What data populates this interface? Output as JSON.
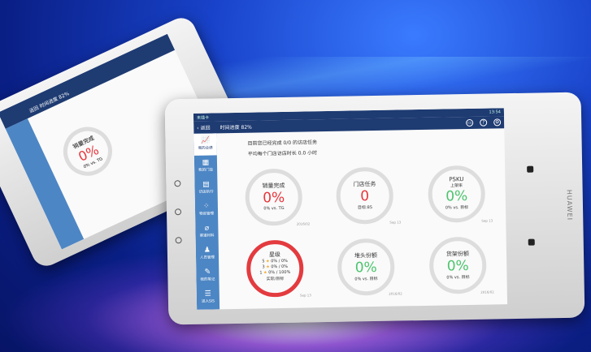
{
  "back_tablet": {
    "back_label": "返回",
    "progress": "时间进度 82%",
    "card_title": "销量完成",
    "card_value": "0%",
    "card_sub": "0% vs. TG"
  },
  "front_tablet": {
    "brand": "HUAWEI",
    "status": {
      "carrier": "未插卡",
      "time": "13:54"
    },
    "header": {
      "back_label": "返回",
      "progress": "时间进度 82%",
      "icons": [
        "message-icon",
        "help-icon",
        "settings-icon"
      ]
    },
    "sidebar": [
      {
        "label": "我的业绩",
        "icon": "chart-icon",
        "active": true
      },
      {
        "label": "我的门店",
        "icon": "store-icon"
      },
      {
        "label": "访店执行",
        "icon": "clipboard-icon"
      },
      {
        "label": "物资管理",
        "icon": "grid-icon"
      },
      {
        "label": "渠道材料",
        "icon": "paperclip-icon"
      },
      {
        "label": "人员管理",
        "icon": "people-icon"
      },
      {
        "label": "我的笔记",
        "icon": "note-icon"
      },
      {
        "label": "进入SIS",
        "icon": "enter-icon"
      }
    ],
    "intro": [
      "目前您已经完成 0/0 的访店任务",
      "平均每个门店访店时长 0.0 小时"
    ],
    "cards": [
      {
        "title": "销量完成",
        "value": "0%",
        "sub": "0% vs. TG",
        "date": "2016/02",
        "color": "#e8363b"
      },
      {
        "title": "门店任务",
        "value": "0",
        "sub": "目标:85",
        "date": "Sep 13",
        "color": "#e8363b"
      },
      {
        "title": "PSKU",
        "subtitle": "上架率",
        "value": "0%",
        "sub": "0% vs. 目标",
        "date": "Sep 13",
        "color": "#4cc46d"
      },
      {
        "title": "星级",
        "stars": [
          {
            "n": "5",
            "v": "0% / 0%"
          },
          {
            "n": "3",
            "v": "0% / 0%"
          },
          {
            "n": "1",
            "v": "0% / 100%"
          }
        ],
        "sub": "实际/目标",
        "date": "Sep 13"
      },
      {
        "title": "堆头份额",
        "value": "0%",
        "sub": "0% vs. 目标",
        "date": "2016/02",
        "color": "#4cc46d"
      },
      {
        "title": "货架份额",
        "value": "0%",
        "sub": "0% vs. 目标",
        "date": "2016/02",
        "color": "#4cc46d"
      }
    ]
  }
}
